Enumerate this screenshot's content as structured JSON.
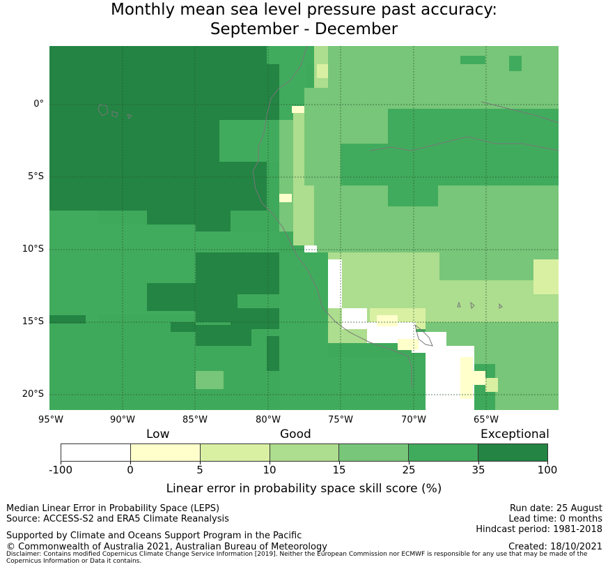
{
  "title": {
    "line1": "Monthly mean sea level pressure past accuracy:",
    "line2": "September - December"
  },
  "map": {
    "lat_labels": [
      "0°",
      "5°S",
      "10°S",
      "15°S",
      "20°S"
    ],
    "lon_labels": [
      "95°W",
      "90°W",
      "85°W",
      "80°W",
      "75°W",
      "70°W",
      "65°W"
    ]
  },
  "legend": {
    "categories": [
      "Low",
      "Good",
      "Exceptional"
    ],
    "ticks": [
      "-100",
      "0",
      "5",
      "10",
      "15",
      "25",
      "35",
      "100"
    ],
    "colors": [
      "#ffffff",
      "#ffffcc",
      "#d9f0a3",
      "#addd8e",
      "#78c679",
      "#41ab5d",
      "#238443"
    ],
    "title": "Linear error in probability space skill score (%)"
  },
  "info": {
    "line1": "Median Linear Error in Probability Space (LEPS)",
    "line2": "Source: ACCESS-S2 and ERA5 Climate Reanalysis",
    "line3": "Supported by Climate and Oceans Support Program in the Pacific",
    "line4": "© Commonwealth of Australia 2021, Australian Bureau of Meteorology",
    "run_date": "Run date: 25 August",
    "lead_time": "Lead time: 0 months",
    "hindcast": "Hindcast period: 1981-2018",
    "created": "Created: 18/10/2021",
    "disclaimer": "Disclaimer: Contains modified Copernicus Climate Change Service Information [2019]. Neither the European Commission nor ECMWF is responsible for any use that may be made of the Copernicus Information or Data it contains."
  }
}
